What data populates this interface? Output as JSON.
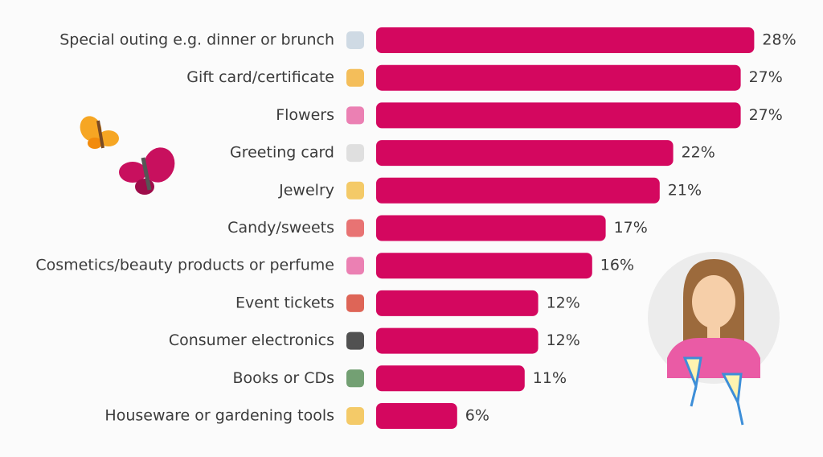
{
  "chart_data": {
    "type": "bar",
    "orientation": "horizontal",
    "categories": [
      "Special outing e.g. dinner or brunch",
      "Gift card/certificate",
      "Flowers",
      "Greeting card",
      "Jewelry",
      "Candy/sweets",
      "Cosmetics/beauty products or perfume",
      "Event tickets",
      "Consumer electronics",
      "Books or CDs",
      "Houseware or gardening tools"
    ],
    "values": [
      28,
      27,
      27,
      22,
      21,
      17,
      16,
      12,
      12,
      11,
      6
    ],
    "value_labels": [
      "28%",
      "27%",
      "27%",
      "22%",
      "21%",
      "17%",
      "16%",
      "12%",
      "12%",
      "11%",
      "6%"
    ],
    "color": "#d4075f"
  }
}
